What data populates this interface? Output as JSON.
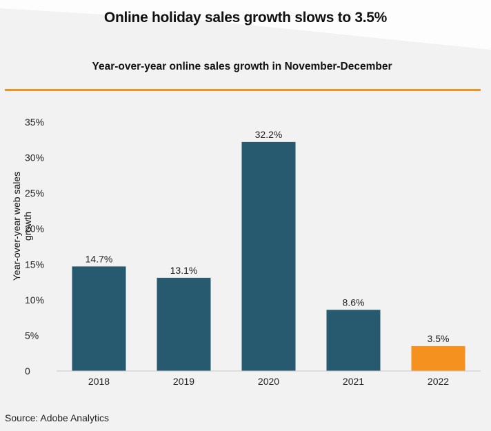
{
  "title": "Online holiday sales growth slows to 3.5%",
  "subtitle": "Year-over-year online sales growth in November-December",
  "source": "Source: Adobe Analytics",
  "colors": {
    "bar": "#275a6f",
    "highlight": "#f5921f",
    "accent_rule": "#f0921f"
  },
  "chart_data": {
    "type": "bar",
    "title": "Online holiday sales growth slows to 3.5%",
    "subtitle": "Year-over-year online sales growth in November-December",
    "xlabel": "",
    "ylabel": "Year-over-year web sales growth",
    "categories": [
      "2018",
      "2019",
      "2020",
      "2021",
      "2022"
    ],
    "values": [
      14.7,
      13.1,
      32.2,
      8.6,
      3.5
    ],
    "data_labels": [
      "14.7%",
      "13.1%",
      "32.2%",
      "8.6%",
      "3.5%"
    ],
    "highlight_index": 4,
    "ylim": [
      0,
      35
    ],
    "yticks": [
      0,
      5,
      10,
      15,
      20,
      25,
      30,
      35
    ],
    "ytick_labels": [
      "0",
      "5%",
      "10%",
      "15%",
      "20%",
      "25%",
      "30%",
      "35%"
    ],
    "grid": false,
    "legend": "none"
  }
}
